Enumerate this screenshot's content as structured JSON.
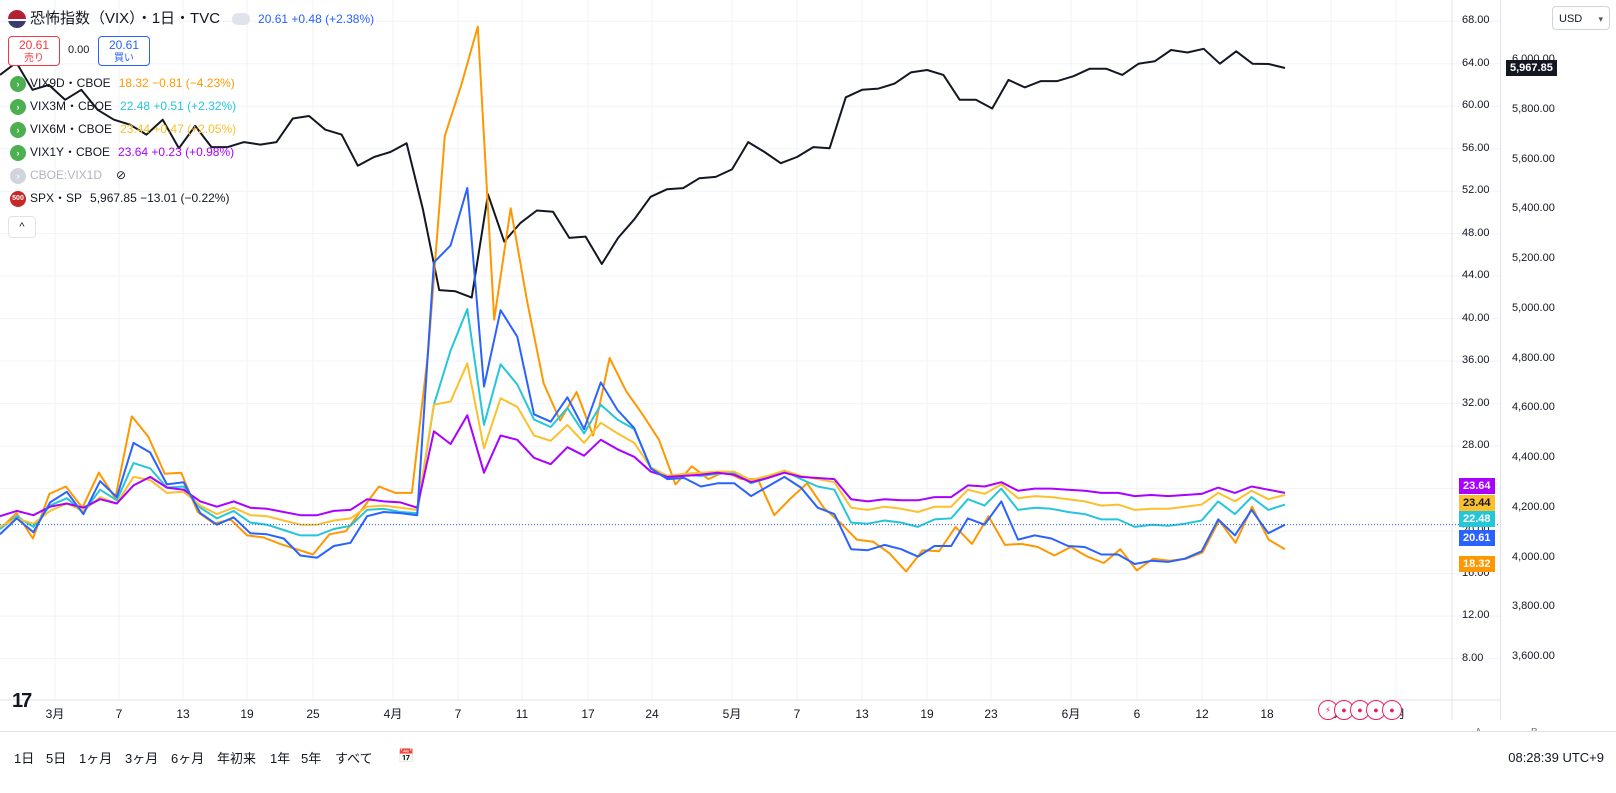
{
  "header": {
    "symbol_title": "恐怖指数（VIX）",
    "interval": "・1日・TVC",
    "price_change": "20.61 +0.48 (+2.38%)",
    "sell_price": "20.61",
    "sell_label": "売り",
    "spread": "0.00",
    "buy_price": "20.61",
    "buy_label": "買い",
    "currency": "USD"
  },
  "legend": [
    {
      "icon_color": "#4caf50",
      "name": "VIX9D・CBOE",
      "value": "18.32 −0.81 (−4.23%)",
      "color": "#ff9800"
    },
    {
      "icon_color": "#4caf50",
      "name": "VIX3M・CBOE",
      "value": "22.48 +0.51 (+2.32%)",
      "color": "#26c6da"
    },
    {
      "icon_color": "#4caf50",
      "name": "VIX6M・CBOE",
      "value": "23.44 +0.47 (+2.05%)",
      "color": "#fbc02d"
    },
    {
      "icon_color": "#4caf50",
      "name": "VIX1Y・CBOE",
      "value": "23.64 +0.23 (+0.98%)",
      "color": "#aa00ff"
    },
    {
      "icon_color": "#d1d4dc",
      "name": "CBOE:VIX1D",
      "value": "",
      "color": "#b2b5be"
    },
    {
      "icon_color": "#c62828",
      "name": "SPX・SP",
      "value": "5,967.85 −13.01 (−0.22%)",
      "color": "#131722",
      "icon_text": "500"
    }
  ],
  "left_axis": {
    "ticks": [
      "68.00",
      "64.00",
      "60.00",
      "56.00",
      "52.00",
      "48.00",
      "44.00",
      "40.00",
      "36.00",
      "32.00",
      "28.00",
      "24.00",
      "20.00",
      "16.00",
      "12.00",
      "8.00"
    ]
  },
  "right_axis": {
    "ticks": [
      "6,000.00",
      "5,800.00",
      "5,600.00",
      "5,400.00",
      "5,200.00",
      "5,000.00",
      "4,800.00",
      "4,600.00",
      "4,400.00",
      "4,200.00",
      "4,000.00",
      "3,800.00",
      "3,600.00"
    ]
  },
  "x_axis": {
    "labels": [
      "3月",
      "7",
      "13",
      "19",
      "25",
      "4月",
      "7",
      "11",
      "17",
      "24",
      "5月",
      "7",
      "13",
      "19",
      "23",
      "6月",
      "6",
      "12",
      "18",
      "25",
      "7月"
    ]
  },
  "price_tags": [
    {
      "label": "5,967.85",
      "color": "#131722",
      "value": 5967.85,
      "axis": "spx"
    },
    {
      "label": "23.64",
      "color": "#aa00ff",
      "value": 23.64,
      "axis": "vix"
    },
    {
      "label": "23.44",
      "color": "#fbc02d",
      "value": 23.44,
      "axis": "vix"
    },
    {
      "label": "22.48",
      "color": "#26c6da",
      "value": 22.48,
      "axis": "vix"
    },
    {
      "label": "20.61",
      "color": "#2962ff",
      "value": 20.61,
      "axis": "vix"
    },
    {
      "label": "18.32",
      "color": "#ff9800",
      "value": 18.32,
      "axis": "vix"
    }
  ],
  "ranges": [
    "1日",
    "5日",
    "1ヶ月",
    "3ヶ月",
    "6ヶ月",
    "年初来",
    "1年",
    "5年",
    "すべて"
  ],
  "clock": "08:28:39 UTC+9",
  "scale_buttons": [
    "A",
    "B"
  ],
  "chart_data": {
    "type": "line",
    "ylim": [
      4,
      70
    ],
    "y2lim": [
      3450,
      6250
    ],
    "series": [
      {
        "name": "恐怖指数（VIX）",
        "color": "#2962ff",
        "axis": "vix",
        "values": [
          19.7,
          21.2,
          19.9,
          22.7,
          23.7,
          21.6,
          24.7,
          23.2,
          28.3,
          27.4,
          24.4,
          24.6,
          21.7,
          20.6,
          21.3,
          19.8,
          19.7,
          19.3,
          17.7,
          17.5,
          18.6,
          18.9,
          21.4,
          21.8,
          21.7,
          21.5,
          45.3,
          46.9,
          52.3,
          33.6,
          40.8,
          38.3,
          31.0,
          30.3,
          32.6,
          29.6,
          34.0,
          31.4,
          29.7,
          25.9,
          24.9,
          25.0,
          24.2,
          24.5,
          24.5,
          23.3,
          24.2,
          25.1,
          24.1,
          22.2,
          21.6,
          18.3,
          18.2,
          18.7,
          18.3,
          17.6,
          18.6,
          18.6,
          21.2,
          20.6,
          22.8,
          19.2,
          19.6,
          19.3,
          18.6,
          18.5,
          17.8,
          17.8,
          16.9,
          17.2,
          17.1,
          17.4,
          18.1,
          21.1,
          19.6,
          22.0,
          19.8,
          20.6
        ]
      },
      {
        "name": "VIX9D",
        "color": "#ff9800",
        "axis": "vix",
        "values": [
          20.2,
          21.7,
          19.3,
          23.5,
          24.2,
          22.2,
          25.5,
          23.1,
          30.8,
          28.9,
          25.4,
          25.5,
          21.8,
          20.7,
          21.1,
          19.6,
          19.4,
          18.8,
          18.3,
          17.8,
          19.7,
          20.0,
          22.1,
          24.2,
          23.6,
          23.6,
          37.0,
          57.2,
          62.0,
          67.5,
          39.9,
          50.4,
          41.6,
          33.9,
          30.4,
          33.1,
          29.0,
          36.3,
          33.2,
          31.0,
          28.6,
          24.4,
          26.1,
          24.9,
          25.6,
          24.9,
          24.9,
          21.5,
          23.1,
          24.5,
          22.2,
          20.8,
          19.2,
          19.0,
          17.9,
          16.2,
          18.2,
          18.1,
          20.4,
          18.8,
          21.4,
          18.7,
          18.8,
          18.5,
          17.7,
          18.5,
          17.6,
          17.0,
          18.3,
          16.3,
          17.4,
          17.2,
          17.4,
          18.0,
          21.0,
          18.9,
          22.3,
          19.2,
          18.3
        ]
      },
      {
        "name": "VIX3M",
        "color": "#26c6da",
        "axis": "vix",
        "values": [
          20.2,
          21.4,
          20.4,
          22.4,
          23.1,
          21.8,
          23.9,
          22.9,
          26.4,
          25.9,
          24.1,
          24.2,
          22.2,
          21.2,
          21.9,
          20.8,
          20.6,
          20.1,
          19.6,
          19.6,
          20.2,
          20.5,
          22.0,
          22.1,
          21.8,
          21.7,
          31.9,
          37.0,
          40.9,
          30.0,
          35.7,
          33.8,
          30.5,
          29.8,
          31.6,
          29.2,
          31.9,
          30.5,
          29.6,
          26.0,
          25.0,
          25.3,
          25.2,
          25.4,
          25.5,
          24.5,
          25.0,
          25.7,
          24.9,
          24.2,
          23.9,
          20.8,
          20.7,
          21.0,
          20.8,
          20.4,
          21.1,
          21.2,
          23.0,
          22.4,
          24.0,
          22.0,
          22.2,
          22.1,
          21.8,
          21.6,
          21.1,
          21.1,
          20.4,
          20.6,
          20.5,
          20.7,
          21.0,
          22.8,
          21.6,
          23.2,
          22.0,
          22.5
        ]
      },
      {
        "name": "VIX6M",
        "color": "#fbc02d",
        "axis": "vix",
        "values": [
          20.4,
          21.2,
          20.7,
          21.9,
          22.6,
          21.9,
          23.2,
          22.6,
          25.1,
          24.8,
          23.6,
          23.7,
          22.4,
          21.6,
          22.2,
          21.5,
          21.4,
          21.0,
          20.6,
          20.6,
          21.0,
          21.2,
          22.3,
          22.4,
          22.2,
          22.0,
          31.9,
          32.2,
          35.8,
          27.8,
          32.5,
          31.7,
          29.0,
          28.5,
          30.0,
          28.3,
          30.2,
          29.2,
          28.3,
          26.0,
          25.2,
          25.4,
          25.5,
          25.6,
          25.6,
          24.8,
          25.2,
          25.7,
          25.2,
          24.9,
          24.6,
          22.2,
          22.0,
          22.3,
          22.1,
          21.8,
          22.3,
          22.3,
          23.9,
          23.5,
          24.4,
          23.1,
          23.3,
          23.2,
          23.0,
          22.8,
          22.4,
          22.5,
          22.0,
          22.1,
          22.1,
          22.3,
          22.5,
          23.6,
          22.8,
          23.8,
          23.0,
          23.4
        ]
      },
      {
        "name": "VIX1Y",
        "color": "#aa00ff",
        "axis": "vix",
        "values": [
          21.4,
          21.9,
          21.5,
          22.3,
          22.6,
          22.2,
          23.0,
          22.6,
          24.3,
          25.1,
          24.1,
          23.9,
          22.8,
          22.3,
          22.8,
          22.2,
          22.1,
          21.8,
          21.5,
          21.5,
          21.9,
          22.0,
          23.0,
          22.8,
          22.7,
          22.2,
          29.4,
          28.2,
          30.9,
          25.5,
          29.0,
          28.6,
          26.9,
          26.3,
          27.9,
          27.1,
          28.6,
          27.7,
          27.0,
          25.6,
          25.1,
          25.2,
          25.3,
          25.5,
          25.3,
          24.6,
          25.0,
          25.5,
          25.1,
          25.0,
          24.9,
          23.0,
          22.8,
          23.0,
          22.9,
          22.9,
          23.2,
          23.2,
          24.3,
          24.2,
          24.6,
          23.8,
          24.0,
          24.0,
          23.9,
          23.8,
          23.6,
          23.6,
          23.3,
          23.4,
          23.3,
          23.4,
          23.5,
          24.1,
          23.6,
          24.2,
          23.9,
          23.6
        ]
      },
      {
        "name": "SPX",
        "color": "#131722",
        "axis": "spx",
        "values": [
          5940,
          5990,
          5880,
          5900,
          5840,
          5880,
          5800,
          5760,
          5740,
          5700,
          5760,
          5645,
          5735,
          5650,
          5650,
          5670,
          5660,
          5670,
          5765,
          5775,
          5720,
          5700,
          5575,
          5610,
          5630,
          5665,
          5400,
          5075,
          5070,
          5045,
          5460,
          5270,
          5345,
          5395,
          5390,
          5285,
          5290,
          5180,
          5285,
          5360,
          5450,
          5480,
          5485,
          5525,
          5530,
          5560,
          5670,
          5630,
          5585,
          5610,
          5650,
          5645,
          5850,
          5880,
          5885,
          5905,
          5950,
          5960,
          5940,
          5840,
          5840,
          5805,
          5920,
          5890,
          5915,
          5915,
          5935,
          5965,
          5965,
          5940,
          5985,
          5995,
          6040,
          6030,
          6045,
          5985,
          6035,
          5985,
          5984,
          5968
        ]
      }
    ]
  }
}
